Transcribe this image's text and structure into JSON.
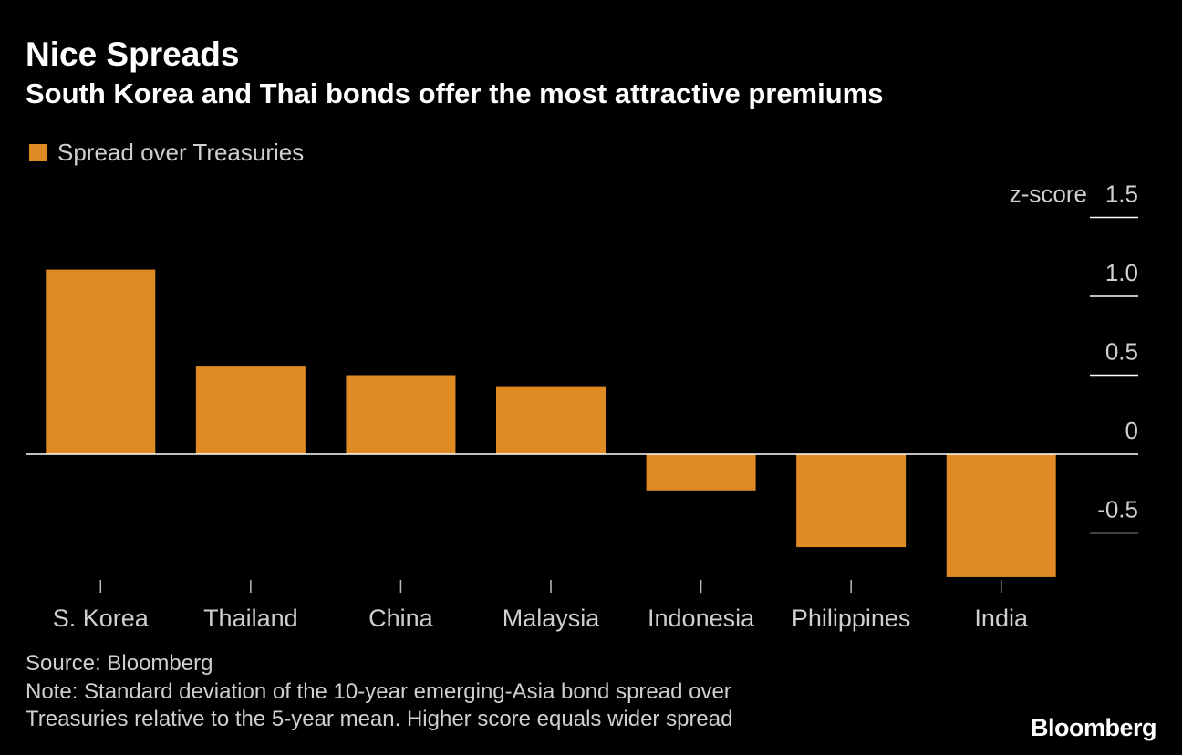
{
  "header": {
    "title": "Nice Spreads",
    "subtitle": "South Korea and Thai bonds offer the most attractive premiums"
  },
  "legend": {
    "label": "Spread over Treasuries"
  },
  "footer": {
    "source": "Source: Bloomberg",
    "note_line1": "Note: Standard deviation of the 10-year emerging-Asia bond spread over",
    "note_line2": "Treasuries relative to the 5-year mean. Higher score equals wider spread",
    "brand": "Bloomberg"
  },
  "colors": {
    "background": "#000000",
    "bar": "#e08a23",
    "text": "#ffffff",
    "muted_text": "#cfcfcf",
    "axis_line": "#ffffff"
  },
  "chart_data": {
    "type": "bar",
    "title": "Nice Spreads",
    "subtitle": "South Korea and Thai bonds offer the most attractive premiums",
    "categories": [
      "S. Korea",
      "Thailand",
      "China",
      "Malaysia",
      "Indonesia",
      "Philippines",
      "India"
    ],
    "series": [
      {
        "name": "Spread over Treasuries",
        "values": [
          1.17,
          0.56,
          0.5,
          0.43,
          -0.23,
          -0.59,
          -0.78
        ]
      }
    ],
    "ylabel": "z-score",
    "ylim": [
      -0.78,
      1.5
    ],
    "yticks": [
      1.5,
      1.0,
      0.5,
      0,
      -0.5
    ],
    "ytick_labels": [
      "1.5",
      "1.0",
      "0.5",
      "0",
      "-0.5"
    ],
    "y_axis_side": "right",
    "grid": false,
    "legend_position": "top-left"
  }
}
